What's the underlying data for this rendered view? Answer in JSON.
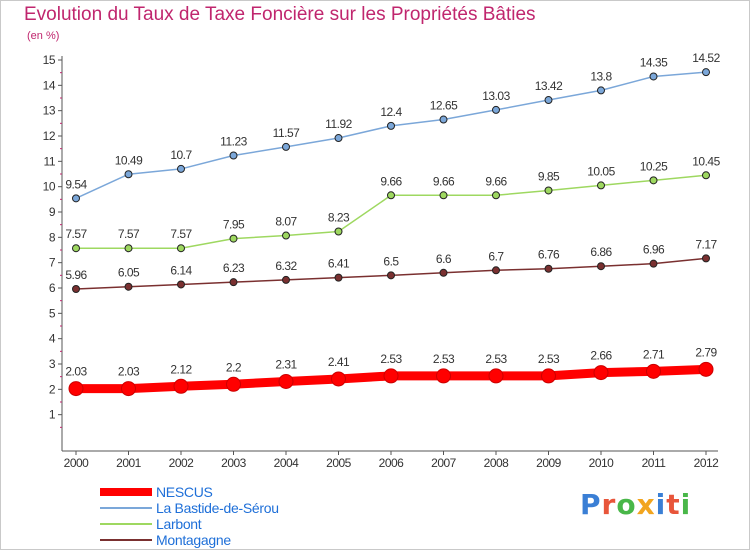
{
  "header": {
    "title": "Evolution du Taux de Taxe Foncière sur les Propriétés Bâties",
    "subtitle": "(en %)"
  },
  "logo": {
    "text": "Proxiti",
    "letter_colors": [
      "#3a7fd5",
      "#e8553a",
      "#49b749",
      "#f2a51f",
      "#3a7fd5",
      "#e8553a",
      "#49b749"
    ]
  },
  "chart_data": {
    "type": "line",
    "x": [
      "2000",
      "2001",
      "2002",
      "2003",
      "2004",
      "2005",
      "2006",
      "2007",
      "2008",
      "2009",
      "2010",
      "2011",
      "2012"
    ],
    "ylim": [
      0,
      15
    ],
    "yticks": [
      "1",
      "2",
      "3",
      "4",
      "5",
      "6",
      "7",
      "8",
      "9",
      "10",
      "11",
      "12",
      "13",
      "14",
      "15"
    ],
    "grid": false,
    "legend_position": "bottom-left",
    "series": [
      {
        "name": "NESCUS",
        "color": "#ff0000",
        "values": [
          2.03,
          2.03,
          2.12,
          2.2,
          2.31,
          2.41,
          2.53,
          2.53,
          2.53,
          2.53,
          2.66,
          2.71,
          2.79
        ],
        "labels": [
          "2.03",
          "2.03",
          "2.12",
          "2.2",
          "2.31",
          "2.41",
          "2.53",
          "2.53",
          "2.53",
          "2.53",
          "2.66",
          "2.71",
          "2.79"
        ]
      },
      {
        "name": "La Bastide-de-Sérou",
        "color": "#7ba7d9",
        "values": [
          9.54,
          10.49,
          10.7,
          11.23,
          11.57,
          11.92,
          12.4,
          12.65,
          13.03,
          13.42,
          13.8,
          14.35,
          14.52
        ],
        "labels": [
          "9.54",
          "10.49",
          "10.7",
          "11.23",
          "11.57",
          "11.92",
          "12.4",
          "12.65",
          "13.03",
          "13.42",
          "13.8",
          "14.35",
          "14.52"
        ]
      },
      {
        "name": "Larbont",
        "color": "#9ed860",
        "values": [
          7.57,
          7.57,
          7.57,
          7.95,
          8.07,
          8.23,
          9.66,
          9.66,
          9.66,
          9.85,
          10.05,
          10.25,
          10.45
        ],
        "labels": [
          "7.57",
          "7.57",
          "7.57",
          "7.95",
          "8.07",
          "8.23",
          "9.66",
          "9.66",
          "9.66",
          "9.85",
          "10.05",
          "10.25",
          "10.45"
        ]
      },
      {
        "name": "Montagagne",
        "color": "#7a3030",
        "values": [
          5.96,
          6.05,
          6.14,
          6.23,
          6.32,
          6.41,
          6.5,
          6.6,
          6.7,
          6.76,
          6.86,
          6.96,
          7.17
        ],
        "labels": [
          "5.96",
          "6.05",
          "6.14",
          "6.23",
          "6.32",
          "6.41",
          "6.5",
          "6.6",
          "6.7",
          "6.76",
          "6.86",
          "6.96",
          "7.17"
        ]
      }
    ]
  }
}
